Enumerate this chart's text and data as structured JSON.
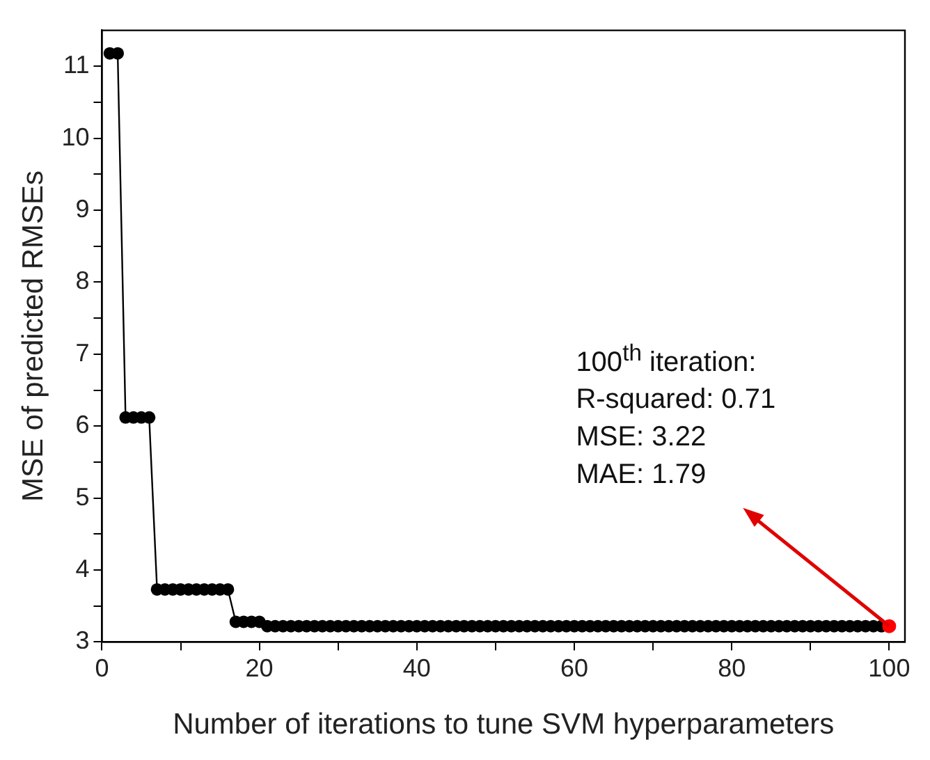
{
  "chart_data": {
    "type": "line",
    "xlabel": "Number of iterations to tune SVM hyperparameters",
    "ylabel": "MSE of predicted RMSEs",
    "xlim": [
      0,
      102
    ],
    "ylim": [
      3,
      11.5
    ],
    "xticks": [
      0,
      {
        "value": 10,
        "label": null
      },
      20,
      {
        "value": 30,
        "label": null
      },
      40,
      {
        "value": 50,
        "label": null
      },
      60,
      {
        "value": 70,
        "label": null
      },
      80,
      {
        "value": 90,
        "label": null
      },
      100
    ],
    "yticks": [
      3,
      {
        "value": 3.5,
        "label": null
      },
      4,
      {
        "value": 4.5,
        "label": null
      },
      5,
      {
        "value": 5.5,
        "label": null
      },
      6,
      {
        "value": 6.5,
        "label": null
      },
      7,
      {
        "value": 7.5,
        "label": null
      },
      8,
      {
        "value": 8.5,
        "label": null
      },
      9,
      {
        "value": 9.5,
        "label": null
      },
      10,
      {
        "value": 10.5,
        "label": null
      },
      11
    ],
    "grid": false,
    "legend": false,
    "marker": "circle",
    "line_style": "solid",
    "x": [
      1,
      2,
      3,
      4,
      5,
      6,
      7,
      8,
      9,
      10,
      11,
      12,
      13,
      14,
      15,
      16,
      17,
      18,
      19,
      20,
      21,
      22,
      23,
      24,
      25,
      26,
      27,
      28,
      29,
      30,
      31,
      32,
      33,
      34,
      35,
      36,
      37,
      38,
      39,
      40,
      41,
      42,
      43,
      44,
      45,
      46,
      47,
      48,
      49,
      50,
      51,
      52,
      53,
      54,
      55,
      56,
      57,
      58,
      59,
      60,
      61,
      62,
      63,
      64,
      65,
      66,
      67,
      68,
      69,
      70,
      71,
      72,
      73,
      74,
      75,
      76,
      77,
      78,
      79,
      80,
      81,
      82,
      83,
      84,
      85,
      86,
      87,
      88,
      89,
      90,
      91,
      92,
      93,
      94,
      95,
      96,
      97,
      98,
      99
    ],
    "series": [
      {
        "color": "#000000",
        "values": [
          11.18,
          11.18,
          6.12,
          6.12,
          6.12,
          6.12,
          3.73,
          3.73,
          3.73,
          3.73,
          3.73,
          3.73,
          3.73,
          3.73,
          3.73,
          3.73,
          3.28,
          3.28,
          3.28,
          3.28,
          3.22,
          3.22,
          3.22,
          3.22,
          3.22,
          3.22,
          3.22,
          3.22,
          3.22,
          3.22,
          3.22,
          3.22,
          3.22,
          3.22,
          3.22,
          3.22,
          3.22,
          3.22,
          3.22,
          3.22,
          3.22,
          3.22,
          3.22,
          3.22,
          3.22,
          3.22,
          3.22,
          3.22,
          3.22,
          3.22,
          3.22,
          3.22,
          3.22,
          3.22,
          3.22,
          3.22,
          3.22,
          3.22,
          3.22,
          3.22,
          3.22,
          3.22,
          3.22,
          3.22,
          3.22,
          3.22,
          3.22,
          3.22,
          3.22,
          3.22,
          3.22,
          3.22,
          3.22,
          3.22,
          3.22,
          3.22,
          3.22,
          3.22,
          3.22,
          3.22,
          3.22,
          3.22,
          3.22,
          3.22,
          3.22,
          3.22,
          3.22,
          3.22,
          3.22,
          3.22,
          3.22,
          3.22,
          3.22,
          3.22,
          3.22,
          3.22,
          3.22,
          3.22,
          3.22
        ]
      },
      {
        "type": "scatter",
        "color": "#ff0000",
        "x": [
          100
        ],
        "values": [
          3.22
        ]
      }
    ],
    "annotations": [
      {
        "text": "100$^{th}$ iteration:\nR-squared: 0.71\nMSE: 3.22\nMAE: 1.79",
        "x": 100,
        "y": 3.22
      }
    ]
  }
}
